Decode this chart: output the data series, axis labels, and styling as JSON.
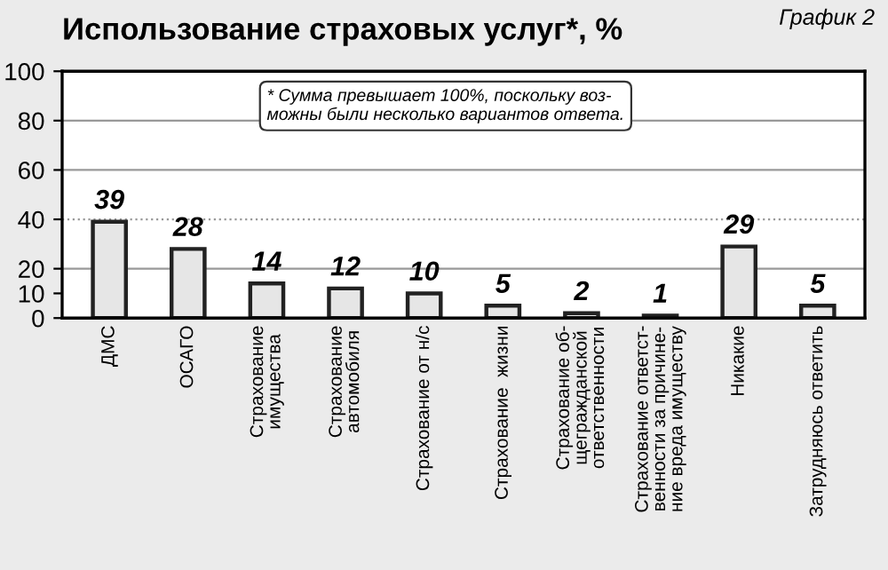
{
  "chart_data": {
    "type": "bar",
    "title": "Использование страховых услуг*, %",
    "categories": [
      "ДМС",
      "ОСАГО",
      "Страхование\nимущества",
      "Страхование\nавтомобиля",
      "Страхование от н/с",
      "Страхование  жизни",
      "Страхование об-\nщегражданской\nответственности",
      "Страхование ответст-\nвенности за причине-\nние вреда имуществу",
      "Никакие",
      "Затрудняюсь ответить"
    ],
    "values": [
      39,
      28,
      14,
      12,
      10,
      5,
      2,
      1,
      29,
      5
    ],
    "color": "#e6e6e6",
    "data_labels": true,
    "ylim": [
      0,
      100
    ],
    "yticks": [
      0,
      10,
      20,
      40,
      60,
      80,
      100
    ],
    "ref_lines": [
      {
        "axis": "y",
        "value": 20,
        "color": "#999999",
        "line_style": "solid"
      },
      {
        "axis": "y",
        "value": 40,
        "color": "#999999",
        "line_style": "dotted"
      },
      {
        "axis": "y",
        "value": 60,
        "color": "#999999",
        "line_style": "solid"
      },
      {
        "axis": "y",
        "value": 80,
        "color": "#999999",
        "line_style": "solid"
      }
    ],
    "annotations": [
      "* Сумма превышает 100%, поскольку воз-\nможны были несколько вариантов ответа.",
      "График 2"
    ]
  }
}
